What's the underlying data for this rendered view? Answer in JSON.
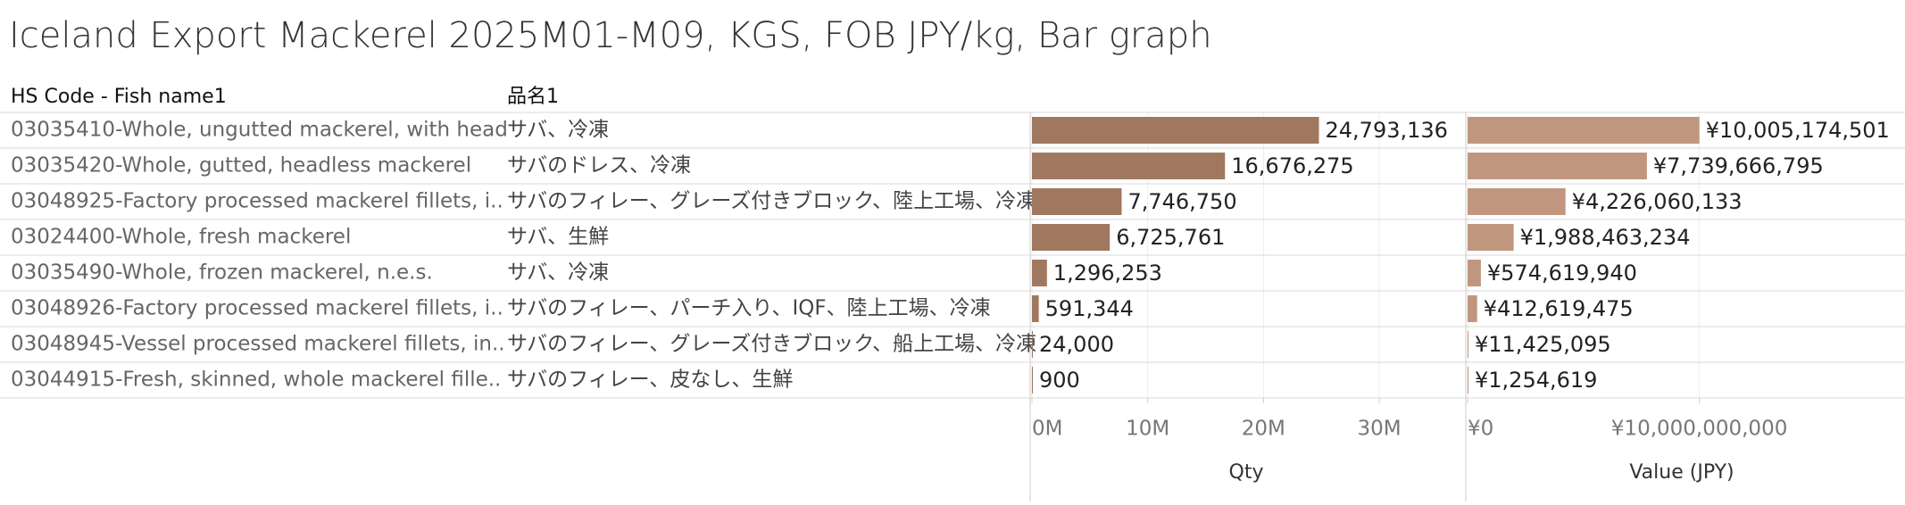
{
  "chart_data": {
    "type": "bar",
    "title": "Iceland Export Mackerel 2025M01-M09, KGS, FOB JPY/kg, Bar graph",
    "row_headers": [
      "HS Code - Fish name1",
      "品名1"
    ],
    "categories": [
      "03035410-Whole, ungutted mackerel, with head",
      "03035420-Whole, gutted, headless mackerel",
      "03048925-Factory processed mackerel fillets, i..",
      "03024400-Whole, fresh mackerel",
      "03035490-Whole, frozen mackerel, n.e.s.",
      "03048926-Factory processed mackerel fillets, i..",
      "03048945-Vessel processed mackerel fillets, in..",
      "03044915-Fresh, skinned, whole mackerel fille.."
    ],
    "categories_ja": [
      "サバ、冷凍",
      "サバのドレス、冷凍",
      "サバのフィレー、グレーズ付きブロック、陸上工場、冷凍",
      "サバ、生鮮",
      "サバ、冷凍",
      "サバのフィレー、パーチ入り、IQF、陸上工場、冷凍",
      "サバのフィレー、グレーズ付きブロック、船上工場、冷凍",
      "サバのフィレー、皮なし、生鮮"
    ],
    "series": [
      {
        "name": "Qty",
        "color": "#a0785f",
        "values": [
          24793136,
          16676275,
          7746750,
          6725761,
          1296253,
          591344,
          24000,
          900
        ],
        "value_labels": [
          "24,793,136",
          "16,676,275",
          "7,746,750",
          "6,725,761",
          "1,296,253",
          "591,344",
          "24,000",
          "900"
        ],
        "xlim": [
          0,
          37400000
        ],
        "xticks": [
          {
            "value": 0,
            "label": "0M"
          },
          {
            "value": 10000000,
            "label": "10M"
          },
          {
            "value": 20000000,
            "label": "20M"
          },
          {
            "value": 30000000,
            "label": "30M"
          }
        ]
      },
      {
        "name": "Value (JPY)",
        "color": "#c1967f",
        "values": [
          10005174501,
          7739666795,
          4226060133,
          1988463234,
          574619940,
          412619475,
          11425095,
          1254619
        ],
        "value_labels": [
          "¥10,005,174,501",
          "¥7,739,666,795",
          "¥4,226,060,133",
          "¥1,988,463,234",
          "¥574,619,940",
          "¥412,619,475",
          "¥11,425,095",
          "¥1,254,619"
        ],
        "xlim": [
          0,
          18800000000
        ],
        "xticks": [
          {
            "value": 0,
            "label": "¥0"
          },
          {
            "value": 10000000000,
            "label": "¥10,000,000,000"
          }
        ]
      }
    ],
    "grid": true
  }
}
